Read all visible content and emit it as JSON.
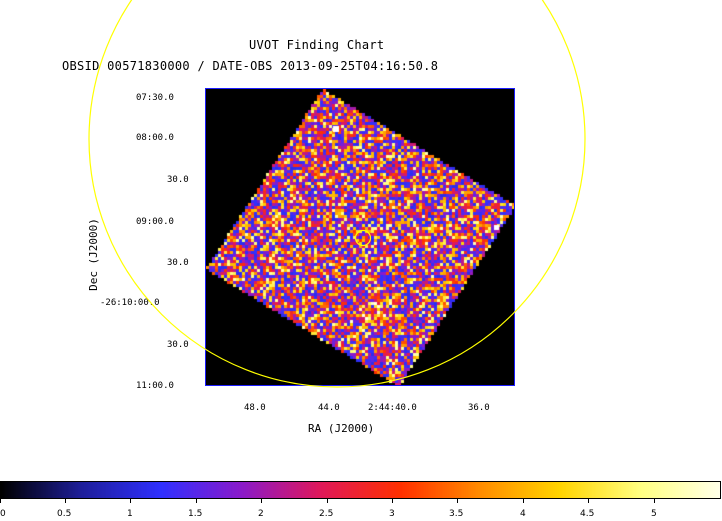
{
  "title": "UVOT Finding Chart",
  "subtitle": "OBSID 00571830000 / DATE-OBS 2013-09-25T04:16:50.8",
  "axes": {
    "x_label": "RA (J2000)",
    "y_label": "Dec (J2000)",
    "x_ticks": [
      "48.0",
      "44.0",
      "2:44:40.0",
      "36.0"
    ],
    "y_ticks": [
      "07:30.0",
      "08:00.0",
      "30.0",
      "09:00.0",
      "30.0",
      "-26:10:00.0",
      "30.0",
      "11:00.0"
    ]
  },
  "colorbar": {
    "ticks": [
      "0",
      "0.5",
      "1",
      "1.5",
      "2",
      "2.5",
      "3",
      "3.5",
      "4",
      "4.5",
      "5"
    ],
    "min": 0,
    "max": 5.5,
    "colormap": [
      "#000000",
      "#1e1e9a",
      "#3030ff",
      "#8a1acb",
      "#e0185a",
      "#ff3000",
      "#ff8c00",
      "#ffd400",
      "#ffff80",
      "#ffffe8"
    ]
  },
  "colors": {
    "circle": "#ffff00",
    "frame": "#1c1cff",
    "background": "#000000"
  }
}
